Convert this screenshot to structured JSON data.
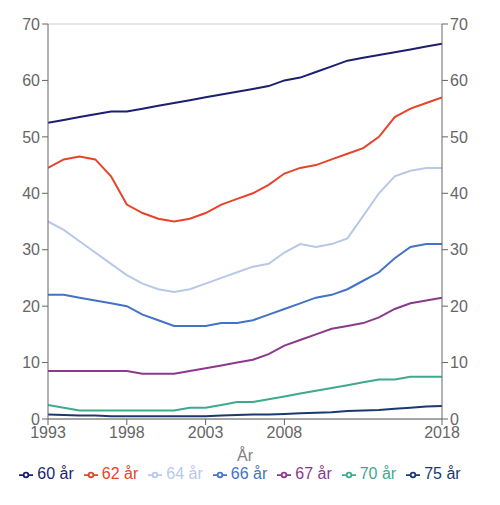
{
  "chart_data": {
    "type": "line",
    "xlabel": "År",
    "x": [
      1993,
      1994,
      1995,
      1996,
      1997,
      1998,
      1999,
      2000,
      2001,
      2002,
      2003,
      2004,
      2005,
      2006,
      2007,
      2008,
      2009,
      2010,
      2011,
      2012,
      2013,
      2014,
      2015,
      2016,
      2017,
      2018
    ],
    "xlim": [
      1993,
      2018
    ],
    "xticks": [
      1993,
      1998,
      2003,
      2008,
      2018
    ],
    "ylim": [
      0,
      70
    ],
    "yticks": [
      0,
      10,
      20,
      30,
      40,
      50,
      60,
      70
    ],
    "y2lim": [
      0,
      70
    ],
    "y2ticks": [
      0,
      10,
      20,
      30,
      40,
      50,
      60,
      70
    ],
    "grid": true,
    "legend": "bottom",
    "series": [
      {
        "name": "60 år",
        "color": "#1b1f6e",
        "values": [
          52.5,
          53.0,
          53.5,
          54.0,
          54.5,
          54.5,
          55.0,
          55.5,
          56.0,
          56.5,
          57.0,
          57.5,
          58.0,
          58.5,
          59.0,
          60.0,
          60.5,
          61.5,
          62.5,
          63.5,
          64.0,
          64.5,
          65.0,
          65.5,
          66.0,
          66.5
        ]
      },
      {
        "name": "62 år",
        "color": "#e8432a",
        "values": [
          44.5,
          46.0,
          46.5,
          46.0,
          43.0,
          38.0,
          36.5,
          35.5,
          35.0,
          35.5,
          36.5,
          38.0,
          39.0,
          40.0,
          41.5,
          43.5,
          44.5,
          45.0,
          46.0,
          47.0,
          48.0,
          50.0,
          53.5,
          55.0,
          56.0,
          57.0
        ]
      },
      {
        "name": "64 år",
        "color": "#b8c8e8",
        "values": [
          35.0,
          33.5,
          31.5,
          29.5,
          27.5,
          25.5,
          24.0,
          23.0,
          22.5,
          23.0,
          24.0,
          25.0,
          26.0,
          27.0,
          27.5,
          29.5,
          31.0,
          30.5,
          31.0,
          32.0,
          36.0,
          40.0,
          43.0,
          44.0,
          44.5,
          44.5
        ]
      },
      {
        "name": "66 år",
        "color": "#4472c4",
        "values": [
          22.0,
          22.0,
          21.5,
          21.0,
          20.5,
          20.0,
          18.5,
          17.5,
          16.5,
          16.5,
          16.5,
          17.0,
          17.0,
          17.5,
          18.5,
          19.5,
          20.5,
          21.5,
          22.0,
          23.0,
          24.5,
          26.0,
          28.5,
          30.5,
          31.0,
          31.0
        ]
      },
      {
        "name": "67 år",
        "color": "#8b3a8b",
        "values": [
          8.5,
          8.5,
          8.5,
          8.5,
          8.5,
          8.5,
          8.0,
          8.0,
          8.0,
          8.5,
          9.0,
          9.5,
          10.0,
          10.5,
          11.5,
          13.0,
          14.0,
          15.0,
          16.0,
          16.5,
          17.0,
          18.0,
          19.5,
          20.5,
          21.0,
          21.5
        ]
      },
      {
        "name": "70 år",
        "color": "#3daa8c",
        "values": [
          2.5,
          2.0,
          1.5,
          1.5,
          1.5,
          1.5,
          1.5,
          1.5,
          1.5,
          2.0,
          2.0,
          2.5,
          3.0,
          3.0,
          3.5,
          4.0,
          4.5,
          5.0,
          5.5,
          6.0,
          6.5,
          7.0,
          7.0,
          7.5,
          7.5,
          7.5
        ]
      },
      {
        "name": "75 år",
        "color": "#1a3a6e",
        "values": [
          0.8,
          0.7,
          0.6,
          0.6,
          0.5,
          0.5,
          0.5,
          0.5,
          0.5,
          0.5,
          0.5,
          0.6,
          0.7,
          0.8,
          0.8,
          0.9,
          1.0,
          1.1,
          1.2,
          1.4,
          1.5,
          1.6,
          1.8,
          2.0,
          2.2,
          2.3
        ]
      }
    ]
  }
}
